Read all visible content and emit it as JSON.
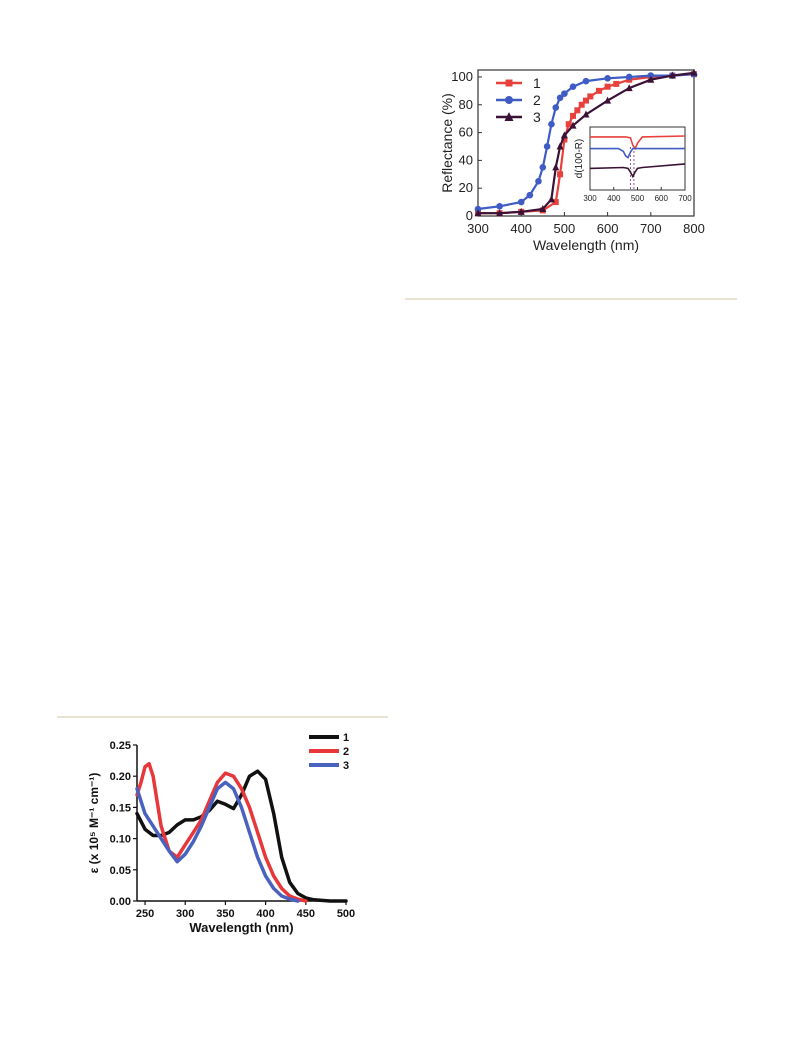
{
  "reflectance_chart": {
    "colors": {
      "1": "#e8413c",
      "2": "#3f5cc4",
      "3": "#3b1236",
      "2_light": "#4d6fe0"
    },
    "chart_data": {
      "type": "line",
      "xlabel": "Wavelength (nm)",
      "ylabel": "Reflectance (%)",
      "xlim": [
        300,
        800
      ],
      "ylim": [
        0,
        105
      ],
      "xticks": [
        300,
        400,
        500,
        600,
        700,
        800
      ],
      "yticks": [
        0,
        20,
        40,
        60,
        80,
        100
      ],
      "legend_position": "top-left",
      "series": [
        {
          "name": "1",
          "marker": "square",
          "x": [
            300,
            350,
            400,
            450,
            480,
            490,
            500,
            510,
            520,
            530,
            540,
            550,
            560,
            580,
            600,
            620,
            650,
            700,
            750,
            800
          ],
          "values": [
            2,
            2,
            3,
            4,
            10,
            30,
            55,
            66,
            72,
            76,
            80,
            83,
            86,
            90,
            93,
            95,
            98,
            100,
            101,
            102
          ]
        },
        {
          "name": "2",
          "marker": "circle",
          "x": [
            300,
            350,
            400,
            420,
            440,
            450,
            460,
            470,
            480,
            490,
            500,
            520,
            550,
            600,
            650,
            700,
            750,
            800
          ],
          "values": [
            5,
            7,
            10,
            15,
            25,
            35,
            50,
            66,
            78,
            85,
            88,
            93,
            97,
            99,
            100,
            101,
            101,
            102
          ]
        },
        {
          "name": "3",
          "marker": "triangle",
          "x": [
            300,
            350,
            400,
            450,
            470,
            480,
            490,
            500,
            520,
            550,
            600,
            650,
            700,
            750,
            800
          ],
          "values": [
            2,
            2,
            3,
            5,
            12,
            35,
            50,
            58,
            65,
            73,
            83,
            92,
            98,
            101,
            103
          ]
        }
      ],
      "inset": {
        "ylabel": "d(100-R)",
        "xlim": [
          300,
          700
        ],
        "xticks": [
          300,
          400,
          500,
          600,
          700
        ],
        "series": [
          {
            "name": "1",
            "x": [
              300,
              450,
              470,
              480,
              490,
              500,
              520,
              700
            ],
            "values": [
              59,
              59,
              58,
              50,
              46,
              52,
              59,
              60
            ]
          },
          {
            "name": "2",
            "x": [
              300,
              420,
              440,
              450,
              460,
              470,
              480,
              700
            ],
            "values": [
              46,
              46,
              43,
              38,
              36,
              42,
              46,
              46
            ]
          },
          {
            "name": "3",
            "x": [
              300,
              440,
              460,
              470,
              480,
              490,
              500,
              520,
              700
            ],
            "values": [
              24,
              25,
              24,
              20,
              15,
              20,
              24,
              25,
              29
            ]
          }
        ]
      }
    }
  },
  "absorption_chart": {
    "colors": {
      "1": "#111111",
      "2": "#e8373a",
      "3": "#4a62bf"
    },
    "chart_data": {
      "type": "line",
      "xlabel": "Wavelength (nm)",
      "ylabel": "ε (x 10⁵ M⁻¹ cm⁻¹)",
      "xlim": [
        240,
        500
      ],
      "ylim": [
        0,
        0.25
      ],
      "xticks": [
        250,
        300,
        350,
        400,
        450,
        500
      ],
      "ytick_labels": [
        "0.00",
        "0.05",
        "0.10",
        "0.15",
        "0.20",
        "0.25"
      ],
      "legend_position": "top-right",
      "series": [
        {
          "name": "1",
          "x": [
            240,
            250,
            260,
            270,
            280,
            290,
            300,
            310,
            320,
            330,
            340,
            350,
            360,
            370,
            380,
            390,
            400,
            410,
            420,
            430,
            440,
            450,
            460,
            470,
            480,
            500
          ],
          "values": [
            0.14,
            0.115,
            0.105,
            0.105,
            0.11,
            0.122,
            0.13,
            0.13,
            0.135,
            0.145,
            0.16,
            0.155,
            0.148,
            0.17,
            0.2,
            0.208,
            0.195,
            0.14,
            0.07,
            0.03,
            0.012,
            0.005,
            0.002,
            0.001,
            0.0,
            0.0
          ]
        },
        {
          "name": "2",
          "x": [
            240,
            245,
            250,
            255,
            260,
            265,
            270,
            280,
            290,
            300,
            310,
            320,
            330,
            340,
            350,
            360,
            370,
            380,
            390,
            400,
            410,
            420,
            430,
            440,
            450
          ],
          "values": [
            0.17,
            0.19,
            0.215,
            0.22,
            0.2,
            0.16,
            0.12,
            0.08,
            0.07,
            0.09,
            0.11,
            0.13,
            0.16,
            0.19,
            0.205,
            0.2,
            0.18,
            0.15,
            0.11,
            0.07,
            0.04,
            0.02,
            0.008,
            0.003,
            0.0
          ]
        },
        {
          "name": "3",
          "x": [
            240,
            245,
            250,
            260,
            270,
            280,
            290,
            300,
            310,
            320,
            330,
            340,
            350,
            360,
            370,
            380,
            390,
            400,
            410,
            420,
            430,
            440
          ],
          "values": [
            0.18,
            0.16,
            0.14,
            0.12,
            0.1,
            0.08,
            0.063,
            0.075,
            0.095,
            0.12,
            0.15,
            0.18,
            0.19,
            0.18,
            0.15,
            0.11,
            0.07,
            0.04,
            0.02,
            0.008,
            0.003,
            0.0
          ]
        }
      ]
    }
  }
}
